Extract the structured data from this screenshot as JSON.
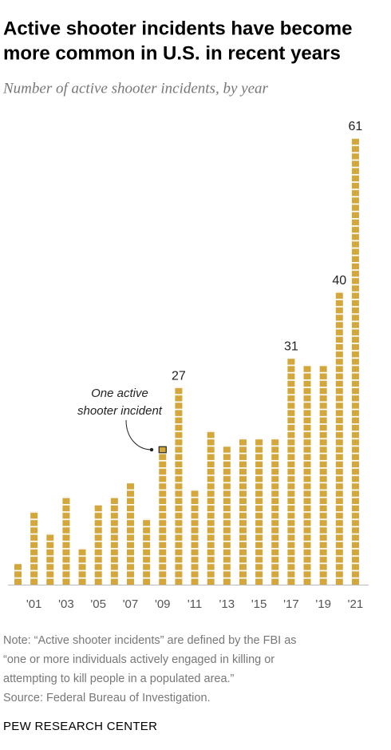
{
  "chart_data": {
    "type": "bar",
    "title": [
      "Active shooter incidents have become",
      "more common in U.S. in recent years"
    ],
    "subtitle": "Number of active shooter incidents, by year",
    "categories": [
      null,
      "'01",
      null,
      "'03",
      null,
      "'05",
      null,
      "'07",
      null,
      "'09",
      null,
      "'11",
      null,
      "'13",
      null,
      "'15",
      null,
      "'17",
      null,
      "'19",
      null,
      "'21"
    ],
    "values": [
      3,
      10,
      7,
      12,
      5,
      11,
      12,
      14,
      9,
      19,
      27,
      13,
      21,
      19,
      20,
      20,
      20,
      31,
      30,
      30,
      40,
      61
    ],
    "value_labels": [
      null,
      null,
      null,
      null,
      null,
      null,
      null,
      null,
      null,
      null,
      "27",
      null,
      null,
      null,
      null,
      null,
      null,
      "31",
      null,
      null,
      "40",
      "61"
    ],
    "color": "#d3a73c",
    "annotation": {
      "lines": [
        "One active",
        "shooter incident"
      ],
      "category_index": 9
    },
    "notes": [
      "Note: “Active shooter incidents” are defined by the FBI as",
      "“one or more individuals actively engaged in killing or",
      "attempting to kill people in a populated area.”",
      "Source: Federal Bureau of Investigation."
    ],
    "footer": "PEW RESEARCH CENTER"
  }
}
